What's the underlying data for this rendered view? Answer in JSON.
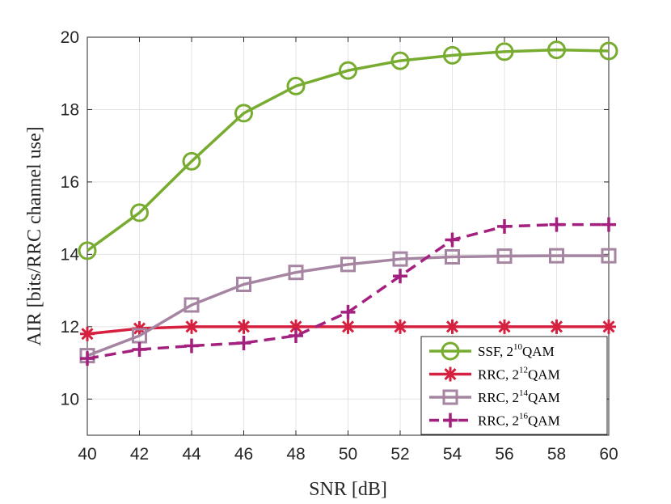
{
  "chart_data": {
    "type": "line",
    "xlabel": "SNR [dB]",
    "ylabel": "AIR [bits/RRC channel use]",
    "xlim": [
      40,
      60
    ],
    "ylim": [
      9,
      20
    ],
    "xticks": [
      40,
      42,
      44,
      46,
      48,
      50,
      52,
      54,
      56,
      58,
      60
    ],
    "yticks": [
      10,
      12,
      14,
      16,
      18,
      20
    ],
    "grid": true,
    "legend_position": "bottom-right",
    "x": [
      40,
      42,
      44,
      46,
      48,
      50,
      52,
      54,
      56,
      58,
      60
    ],
    "series": [
      {
        "name": "SSF, 2^10QAM",
        "label_base": "SSF, 2",
        "label_exp": "10",
        "label_suffix": "QAM",
        "color": "#77AC30",
        "marker": "circle",
        "line_style": "solid",
        "values": [
          14.1,
          15.15,
          16.57,
          17.9,
          18.65,
          19.08,
          19.35,
          19.5,
          19.6,
          19.65,
          19.62
        ]
      },
      {
        "name": "RRC, 2^12QAM",
        "label_base": "RRC, 2",
        "label_exp": "12",
        "label_suffix": "QAM",
        "color": "#D6203F",
        "marker": "asterisk",
        "line_style": "solid",
        "values": [
          11.8,
          11.95,
          12.0,
          12.0,
          12.0,
          12.0,
          12.0,
          12.0,
          12.0,
          12.0,
          12.0
        ]
      },
      {
        "name": "RRC, 2^14QAM",
        "label_base": "RRC, 2",
        "label_exp": "14",
        "label_suffix": "QAM",
        "color": "#A585A2",
        "marker": "square",
        "line_style": "solid",
        "values": [
          11.2,
          11.75,
          12.6,
          13.17,
          13.5,
          13.72,
          13.87,
          13.93,
          13.95,
          13.96,
          13.96
        ]
      },
      {
        "name": "RRC, 2^16QAM",
        "label_base": "RRC, 2",
        "label_exp": "16",
        "label_suffix": "QAM",
        "color": "#A3207F",
        "marker": "plus",
        "line_style": "dashed",
        "values": [
          11.12,
          11.37,
          11.47,
          11.55,
          11.75,
          12.4,
          13.4,
          14.4,
          14.77,
          14.82,
          14.82
        ]
      }
    ]
  }
}
